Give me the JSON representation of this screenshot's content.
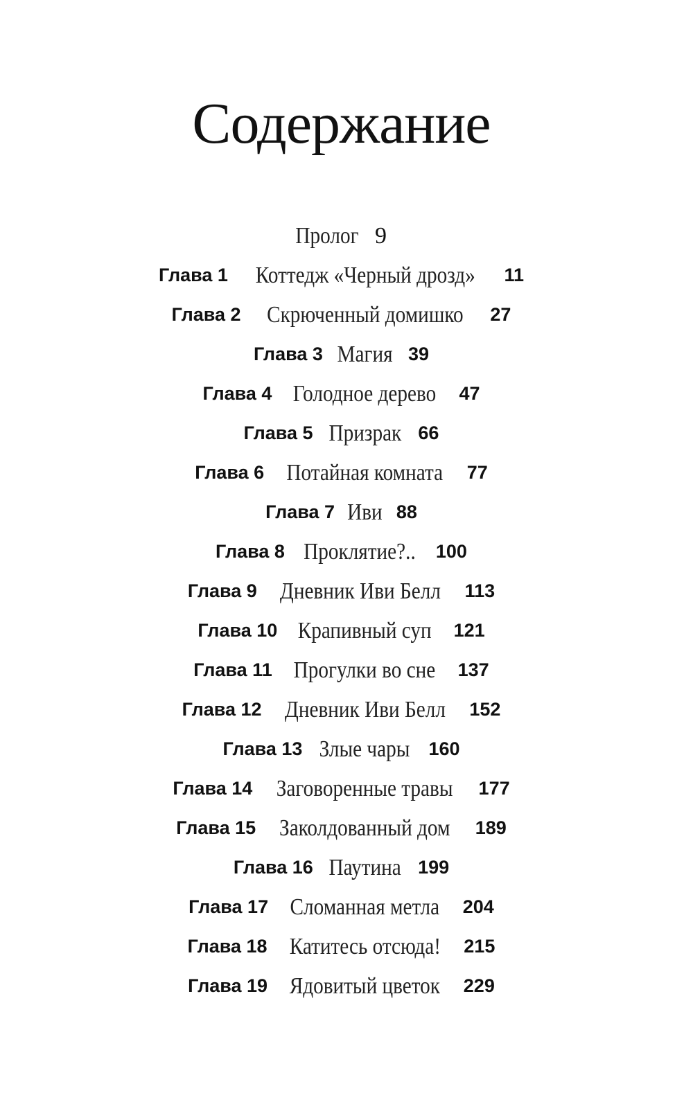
{
  "title": "Содержание",
  "prologue": {
    "name": "Пролог",
    "page": "9"
  },
  "chapters": [
    {
      "label": "Глава 1",
      "name": "Коттедж «Черный дрозд»",
      "page": "11"
    },
    {
      "label": "Глава 2",
      "name": "Скрюченный домишко",
      "page": "27"
    },
    {
      "label": "Глава 3",
      "name": "Магия",
      "page": "39"
    },
    {
      "label": "Глава 4",
      "name": "Голодное дерево",
      "page": "47"
    },
    {
      "label": "Глава 5",
      "name": "Призрак",
      "page": "66"
    },
    {
      "label": "Глава 6",
      "name": "Потайная комната",
      "page": "77"
    },
    {
      "label": "Глава 7",
      "name": "Иви",
      "page": "88"
    },
    {
      "label": "Глава 8",
      "name": "Проклятие?..",
      "page": "100"
    },
    {
      "label": "Глава 9",
      "name": "Дневник Иви Белл",
      "page": "113"
    },
    {
      "label": "Глава 10",
      "name": "Крапивный суп",
      "page": "121"
    },
    {
      "label": "Глава 11",
      "name": "Прогулки во сне",
      "page": "137"
    },
    {
      "label": "Глава 12",
      "name": "Дневник Иви Белл",
      "page": "152"
    },
    {
      "label": "Глава 13",
      "name": "Злые чары",
      "page": "160"
    },
    {
      "label": "Глава 14",
      "name": "Заговоренные травы",
      "page": "177"
    },
    {
      "label": "Глава 15",
      "name": "Заколдованный дом",
      "page": "189"
    },
    {
      "label": "Глава 16",
      "name": "Паутина",
      "page": "199"
    },
    {
      "label": "Глава 17",
      "name": "Сломанная метла",
      "page": "204"
    },
    {
      "label": "Глава 18",
      "name": "Катитесь отсюда!",
      "page": "215"
    },
    {
      "label": "Глава 19",
      "name": "Ядовитый цветок",
      "page": "229"
    }
  ]
}
